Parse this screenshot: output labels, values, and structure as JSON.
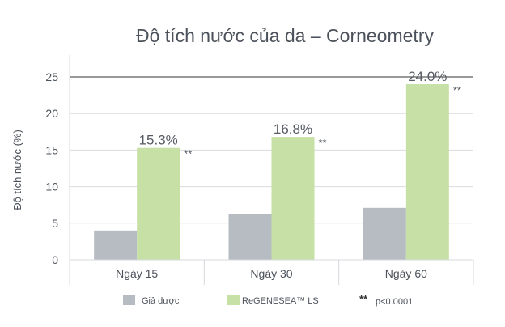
{
  "chart_data": {
    "type": "bar",
    "title": "Độ tích nước của da – Corneometry",
    "xlabel": "",
    "ylabel": "Độ tích nước (%)",
    "ylim": [
      0,
      25
    ],
    "yticks": [
      "0",
      "5",
      "10",
      "15",
      "20",
      "25"
    ],
    "categories": [
      "Ngày 15",
      "Ngày 30",
      "Ngày 60"
    ],
    "series": [
      {
        "name": "Giả dược",
        "values": [
          4.0,
          6.2,
          7.1
        ],
        "color": "#b7bcc3"
      },
      {
        "name": "ReGENESEA™ LS",
        "values": [
          15.3,
          16.8,
          24.0
        ],
        "color": "#c6e0a6",
        "labels": [
          "15.3%",
          "16.8%",
          "24.0%"
        ],
        "significance": [
          "**",
          "**",
          "**"
        ]
      }
    ],
    "grid": true,
    "legend": "bottom",
    "legend_note": {
      "symbol": "**",
      "text": "p<0.0001"
    }
  }
}
